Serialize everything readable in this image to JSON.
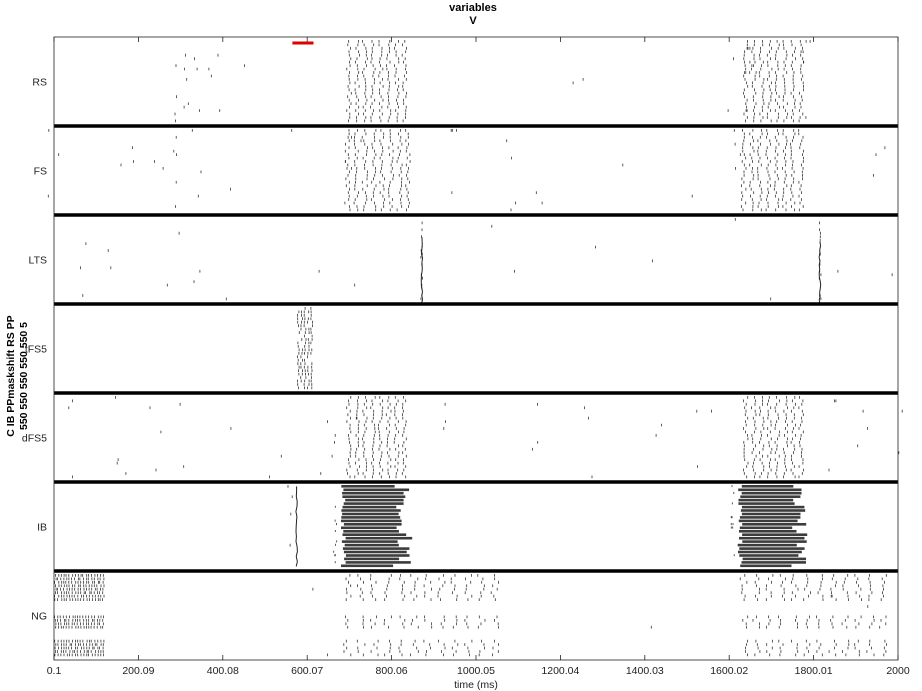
{
  "chart_data": {
    "type": "raster",
    "title": [
      "variables",
      "V"
    ],
    "xlabel": "time (ms)",
    "ylabel": [
      "C IB PPmaskshift RS PP",
      "550 550 550 550 550 5"
    ],
    "xlim": [
      0.1,
      2000
    ],
    "x_ticks": [
      0.1,
      200.09,
      400.08,
      600.07,
      800.06,
      1000.05,
      1200.04,
      1400.03,
      1600.02,
      1800.01,
      2000
    ],
    "x_tick_labels": [
      "0.1",
      "200.09",
      "400.08",
      "600.07",
      "800.06",
      "1000.05",
      "1200.04",
      "1400.03",
      "1600.02",
      "1800.01",
      "2000"
    ],
    "grid": false,
    "populations": [
      {
        "name": "RS",
        "sparse": [
          [
            283,
            3
          ],
          [
            300,
            4
          ],
          [
            330,
            5
          ],
          [
            376,
            4
          ],
          [
            465,
            1
          ],
          [
            1235,
            2
          ],
          [
            1600,
            2
          ],
          [
            1641,
            7
          ],
          [
            1785,
            5
          ]
        ],
        "bursts": [
          [
            690,
            840,
            8
          ],
          [
            1630,
            1780,
            8
          ]
        ]
      },
      {
        "name": "FS",
        "sparse": [
          [
            1,
            3
          ],
          [
            170,
            3
          ],
          [
            250,
            2
          ],
          [
            280,
            5
          ],
          [
            330,
            3
          ],
          [
            420,
            1
          ],
          [
            560,
            1
          ],
          [
            710,
            4
          ],
          [
            940,
            4
          ],
          [
            1090,
            4
          ],
          [
            1160,
            2
          ],
          [
            1350,
            1
          ],
          [
            1520,
            1
          ],
          [
            1610,
            4
          ],
          [
            1955,
            3
          ]
        ],
        "bursts": [
          [
            685,
            850,
            8
          ],
          [
            1625,
            1780,
            8
          ]
        ]
      },
      {
        "name": "LTS",
        "sparse": [
          [
            60,
            3
          ],
          [
            130,
            2
          ],
          [
            250,
            1
          ],
          [
            300,
            1
          ],
          [
            350,
            2
          ],
          [
            420,
            1
          ],
          [
            610,
            1
          ],
          [
            730,
            1
          ],
          [
            1020,
            1
          ],
          [
            1090,
            1
          ],
          [
            1280,
            1
          ],
          [
            1420,
            1
          ],
          [
            1630,
            1
          ],
          [
            1710,
            1
          ],
          [
            1870,
            1
          ],
          [
            1985,
            1
          ]
        ],
        "bursts": [
          [
            868,
            875,
            1
          ],
          [
            1812,
            1819,
            1
          ]
        ],
        "columns": [
          [
            872,
            0.25,
            1.0
          ],
          [
            1815,
            0.3,
            1.0
          ]
        ]
      },
      {
        "name": "tFS5",
        "sparse": [],
        "bursts": [
          [
            575,
            615,
            5
          ]
        ]
      },
      {
        "name": "dFS5",
        "sparse": [
          [
            30,
            3
          ],
          [
            160,
            4
          ],
          [
            240,
            3
          ],
          [
            290,
            2
          ],
          [
            400,
            1
          ],
          [
            520,
            2
          ],
          [
            640,
            3
          ],
          [
            680,
            2
          ],
          [
            720,
            1
          ],
          [
            920,
            3
          ],
          [
            1150,
            3
          ],
          [
            1270,
            3
          ],
          [
            1420,
            2
          ],
          [
            1540,
            3
          ],
          [
            1840,
            3
          ],
          [
            1920,
            3
          ],
          [
            1990,
            2
          ]
        ],
        "bursts": [
          [
            690,
            840,
            8
          ],
          [
            1630,
            1780,
            8
          ]
        ]
      },
      {
        "name": "IB",
        "sparse": [
          [
            560,
            4
          ]
        ],
        "bursts": [
          [
            680,
            840,
            26
          ],
          [
            1620,
            1780,
            26
          ]
        ],
        "columns": [
          [
            575,
            0.05,
            0.95
          ]
        ]
      },
      {
        "name": "NG",
        "sparse": [
          [
            610,
            1
          ],
          [
            650,
            1
          ],
          [
            1400,
            1
          ],
          [
            1850,
            1
          ],
          [
            1940,
            1
          ]
        ],
        "bursts": [
          [
            0,
            120,
            18
          ],
          [
            680,
            1060,
            12
          ],
          [
            1620,
            1980,
            12
          ]
        ]
      }
    ],
    "stimulus_marker": {
      "x_start": 565,
      "x_end": 615,
      "color": "#e00000"
    }
  }
}
